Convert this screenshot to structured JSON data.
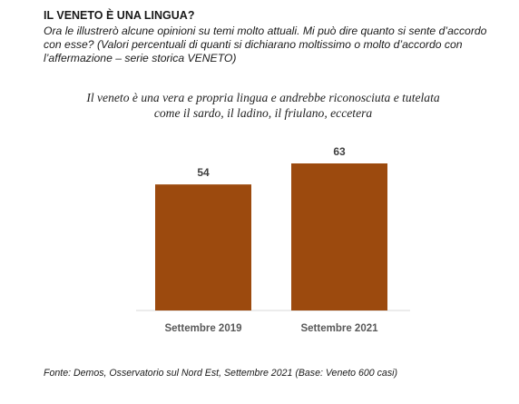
{
  "header": {
    "title": "IL VENETO È UNA LINGUA?",
    "intro": "Ora le illustrerò alcune opinioni su temi molto attuali. Mi può dire quanto si sente d’accordo con esse? (Valori percentuali di quanti si dichiarano moltissimo o molto d’accordo con l’affermazione – serie storica VENETO)"
  },
  "chart_data": {
    "type": "bar",
    "title": "Il veneto è una vera e propria lingua e andrebbe riconosciuta e tutelata come il sardo, il ladino, il friulano, eccetera",
    "categories": [
      "Settembre 2019",
      "Settembre 2021"
    ],
    "values": [
      54,
      63
    ],
    "xlabel": "",
    "ylabel": "",
    "ylim": [
      0,
      63
    ],
    "grid": false,
    "legend": "none",
    "bar_color": "#9C4A0E"
  },
  "footer": {
    "source": "Fonte: Demos, Osservatorio sul Nord Est, Settembre 2021 (Base: Veneto 600 casi)"
  }
}
